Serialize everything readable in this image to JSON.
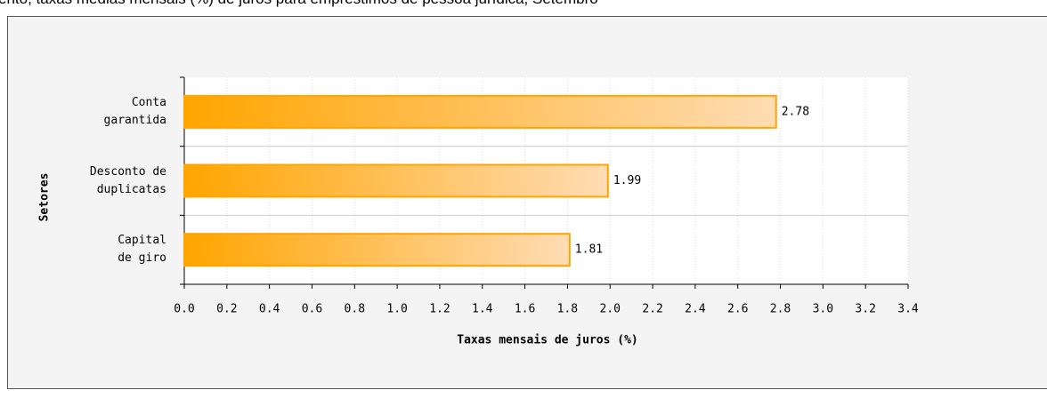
{
  "chart_data": {
    "type": "bar",
    "orientation": "horizontal",
    "title": "ento, taxas médias mensais (%) de juros para empréstimos de pessoa jurídica, Setembro",
    "categories": [
      "Conta\ngarantida",
      "Desconto de\nduplicatas",
      "Capital\nde giro"
    ],
    "values": [
      2.78,
      1.99,
      1.81
    ],
    "color": "#ffa500",
    "x_label": "Taxas mensais de juros (%)",
    "y_label": "Setores",
    "xlim": [
      0,
      3.4
    ],
    "xticks": [
      {
        "value": 0,
        "label": "0.0"
      },
      {
        "value": 0.2,
        "label": "0.2"
      },
      {
        "value": 0.4,
        "label": "0.4"
      },
      {
        "value": 0.6,
        "label": "0.6"
      },
      {
        "value": 0.8,
        "label": "0.8"
      },
      {
        "value": 1,
        "label": "1.0"
      },
      {
        "value": 1.2,
        "label": "1.2"
      },
      {
        "value": 1.4,
        "label": "1.4"
      },
      {
        "value": 1.6,
        "label": "1.6"
      },
      {
        "value": 1.8,
        "label": "1.8"
      },
      {
        "value": 2,
        "label": "2.0"
      },
      {
        "value": 2.2,
        "label": "2.2"
      },
      {
        "value": 2.4,
        "label": "2.4"
      },
      {
        "value": 2.6,
        "label": "2.6"
      },
      {
        "value": 2.8,
        "label": "2.8"
      },
      {
        "value": 3,
        "label": "3.0"
      },
      {
        "value": 3.2,
        "label": "3.2"
      },
      {
        "value": 3.4,
        "label": "3.4"
      }
    ],
    "grid": true
  }
}
